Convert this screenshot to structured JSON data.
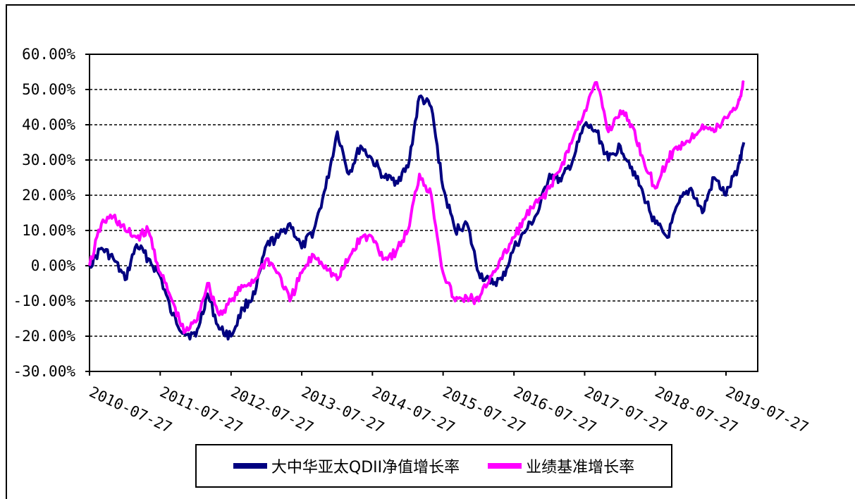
{
  "chart_data": {
    "type": "line",
    "title": "",
    "xlabel": "",
    "ylabel": "",
    "ylim": [
      -30,
      60
    ],
    "yticks": [
      "60.00%",
      "50.00%",
      "40.00%",
      "30.00%",
      "20.00%",
      "10.00%",
      "0.00%",
      "-10.00%",
      "-20.00%",
      "-30.00%"
    ],
    "ytick_values": [
      60,
      50,
      40,
      30,
      20,
      10,
      0,
      -10,
      -20,
      -30
    ],
    "xticks": [
      "2010-07-27",
      "2011-07-27",
      "2012-07-27",
      "2013-07-27",
      "2014-07-27",
      "2015-07-27",
      "2016-07-27",
      "2017-07-27",
      "2018-07-27",
      "2019-07-27"
    ],
    "grid": "horizontal dashed",
    "legend_position": "bottom",
    "x": [
      "2010-07-27",
      "2010-09-27",
      "2010-11-27",
      "2011-01-27",
      "2011-03-27",
      "2011-05-27",
      "2011-07-27",
      "2011-09-27",
      "2011-11-27",
      "2012-01-27",
      "2012-03-27",
      "2012-05-27",
      "2012-07-27",
      "2012-09-27",
      "2012-11-27",
      "2013-01-27",
      "2013-03-27",
      "2013-05-27",
      "2013-07-27",
      "2013-09-27",
      "2013-11-27",
      "2014-01-27",
      "2014-03-27",
      "2014-05-27",
      "2014-07-27",
      "2014-09-27",
      "2014-11-27",
      "2015-01-27",
      "2015-03-27",
      "2015-05-27",
      "2015-07-27",
      "2015-09-27",
      "2015-11-27",
      "2016-01-27",
      "2016-03-27",
      "2016-05-27",
      "2016-07-27",
      "2016-09-27",
      "2016-11-27",
      "2017-01-27",
      "2017-03-27",
      "2017-05-27",
      "2017-07-27",
      "2017-09-27",
      "2017-11-27",
      "2018-01-27",
      "2018-03-27",
      "2018-05-27",
      "2018-07-27",
      "2018-09-27",
      "2018-11-27",
      "2019-01-27",
      "2019-03-27",
      "2019-05-27",
      "2019-07-27",
      "2019-09-27",
      "2019-10-27"
    ],
    "series": [
      {
        "name": "大中华亚太QDII净值增长率",
        "color": "#000080",
        "values": [
          0,
          5,
          2,
          -4,
          6,
          2,
          -3,
          -14,
          -19,
          -20,
          -8,
          -18,
          -20,
          -12,
          -8,
          6,
          8,
          12,
          5,
          10,
          22,
          38,
          26,
          34,
          30,
          25,
          24,
          28,
          48,
          45,
          22,
          10,
          12,
          -2,
          -5,
          -4,
          5,
          10,
          15,
          26,
          24,
          30,
          40,
          38,
          30,
          34,
          28,
          20,
          12,
          8,
          18,
          22,
          15,
          25,
          20,
          28,
          35
        ]
      },
      {
        "name": "业绩基准增长率",
        "color": "#ff00ff",
        "values": [
          0,
          12,
          14,
          10,
          8,
          10,
          -2,
          -10,
          -19,
          -16,
          -5,
          -14,
          -10,
          -6,
          -4,
          2,
          -2,
          -10,
          -2,
          3,
          0,
          -4,
          2,
          8,
          8,
          2,
          4,
          10,
          26,
          20,
          -2,
          -10,
          -9,
          -10,
          -3,
          2,
          8,
          14,
          18,
          22,
          28,
          36,
          44,
          52,
          38,
          44,
          40,
          30,
          22,
          30,
          34,
          36,
          40,
          38,
          42,
          46,
          52
        ]
      }
    ]
  }
}
